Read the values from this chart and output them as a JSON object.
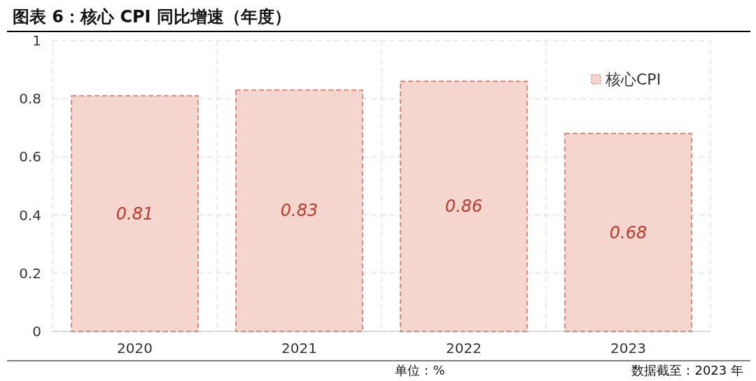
{
  "chart_data": {
    "type": "bar",
    "title": "图表 6：核心 CPI 同比增速（年度）",
    "categories": [
      "2020",
      "2021",
      "2022",
      "2023"
    ],
    "series": [
      {
        "name": "核心CPI",
        "color": "#f5d6ce",
        "values": [
          0.81,
          0.83,
          0.86,
          0.68
        ]
      }
    ],
    "ylim": [
      0,
      1
    ],
    "yticks": [
      0,
      0.2,
      0.4,
      0.6,
      0.8,
      1
    ],
    "grid": true,
    "legend": "top right",
    "data_labels": true,
    "annotations": [
      "单位：%",
      "数据截至：2023 年"
    ]
  }
}
